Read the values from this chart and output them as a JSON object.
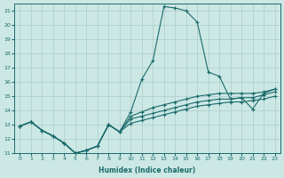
{
  "xlabel": "Humidex (Indice chaleur)",
  "bg_color": "#cce8e5",
  "grid_color": "#aaccca",
  "line_color": "#1a6b6b",
  "xlim": [
    -0.5,
    23.5
  ],
  "ylim": [
    11,
    21.5
  ],
  "yticks": [
    11,
    12,
    13,
    14,
    15,
    16,
    17,
    18,
    19,
    20,
    21
  ],
  "xticks": [
    0,
    1,
    2,
    3,
    4,
    5,
    6,
    7,
    8,
    9,
    10,
    11,
    12,
    13,
    14,
    15,
    16,
    17,
    18,
    19,
    20,
    21,
    22,
    23
  ],
  "series": [
    {
      "x": [
        0,
        1,
        2,
        3,
        4,
        5,
        6,
        7,
        8,
        9,
        10,
        11,
        12,
        13,
        14,
        15,
        16,
        17,
        18,
        19,
        20,
        21,
        22,
        23
      ],
      "y": [
        12.9,
        13.2,
        12.6,
        12.2,
        11.7,
        11.0,
        11.2,
        11.5,
        13.0,
        12.5,
        13.9,
        16.2,
        17.5,
        21.3,
        21.2,
        21.0,
        20.2,
        16.7,
        16.4,
        14.8,
        14.9,
        14.1,
        15.2,
        15.5
      ]
    },
    {
      "x": [
        0,
        1,
        2,
        3,
        4,
        5,
        6,
        7,
        8,
        9,
        10,
        11,
        12,
        13,
        14,
        15,
        16,
        17,
        18,
        19,
        20,
        21,
        22,
        23
      ],
      "y": [
        12.9,
        13.2,
        12.6,
        12.2,
        11.7,
        11.0,
        11.2,
        11.5,
        13.0,
        12.5,
        13.6,
        13.9,
        14.2,
        14.4,
        14.6,
        14.8,
        15.0,
        15.1,
        15.2,
        15.2,
        15.2,
        15.2,
        15.3,
        15.5
      ]
    },
    {
      "x": [
        0,
        1,
        2,
        3,
        4,
        5,
        6,
        7,
        8,
        9,
        10,
        11,
        12,
        13,
        14,
        15,
        16,
        17,
        18,
        19,
        20,
        21,
        22,
        23
      ],
      "y": [
        12.9,
        13.2,
        12.6,
        12.2,
        11.7,
        11.0,
        11.2,
        11.5,
        13.0,
        12.5,
        13.4,
        13.6,
        13.8,
        14.0,
        14.2,
        14.4,
        14.6,
        14.7,
        14.8,
        14.8,
        14.9,
        14.9,
        15.1,
        15.3
      ]
    },
    {
      "x": [
        0,
        1,
        2,
        3,
        4,
        5,
        6,
        7,
        8,
        9,
        10,
        11,
        12,
        13,
        14,
        15,
        16,
        17,
        18,
        19,
        20,
        21,
        22,
        23
      ],
      "y": [
        12.9,
        13.2,
        12.6,
        12.2,
        11.7,
        11.0,
        11.2,
        11.5,
        13.0,
        12.5,
        13.1,
        13.3,
        13.5,
        13.7,
        13.9,
        14.1,
        14.3,
        14.4,
        14.5,
        14.6,
        14.6,
        14.7,
        14.8,
        15.0
      ]
    }
  ]
}
